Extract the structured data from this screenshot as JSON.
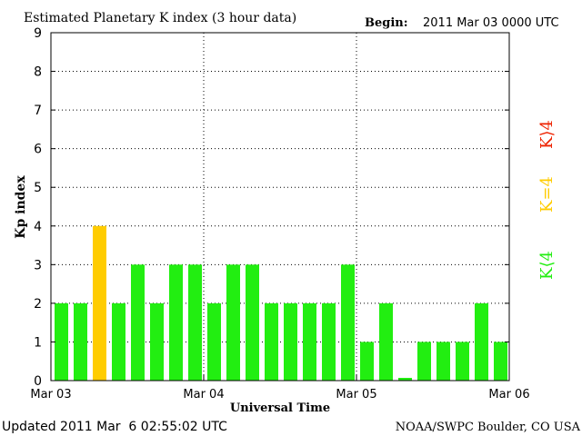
{
  "chart_data": {
    "type": "bar",
    "title": "Estimated Planetary K index (3 hour data)",
    "begin_label": "Begin:",
    "begin_value": "2011 Mar 03 0000 UTC",
    "xlabel": "Universal Time",
    "ylabel": "Kp index",
    "ylim": [
      0,
      9
    ],
    "yticks": [
      "0",
      "1",
      "2",
      "3",
      "4",
      "5",
      "6",
      "7",
      "8",
      "9"
    ],
    "xticks": [
      "Mar 03",
      "Mar 04",
      "Mar 05",
      "Mar 06"
    ],
    "x_range": [
      "2011-03-03 00:00",
      "2011-03-06 00:00"
    ],
    "bar_interval_hours": 3,
    "values": [
      2,
      2,
      4,
      2,
      3,
      2,
      3,
      3,
      2,
      3,
      3,
      2,
      2,
      2,
      2,
      3,
      1,
      2,
      0,
      1,
      1,
      1,
      2,
      1
    ],
    "grid": true,
    "legend": {
      "placement": "right",
      "entries": [
        {
          "label": "K⟨4",
          "color": "#22ee11",
          "condition": "below 4"
        },
        {
          "label": "K=4",
          "color": "#ffcc00",
          "condition": "equal 4"
        },
        {
          "label": "K⟩4",
          "color": "#ee2200",
          "condition": "above 4"
        }
      ]
    },
    "colors": {
      "low": "#22ee11",
      "mid": "#ffcc00",
      "high": "#ee2200"
    }
  },
  "footer": {
    "updated": "Updated 2011 Mar  6 02:55:02 UTC",
    "source": "NOAA/SWPC Boulder, CO USA"
  }
}
